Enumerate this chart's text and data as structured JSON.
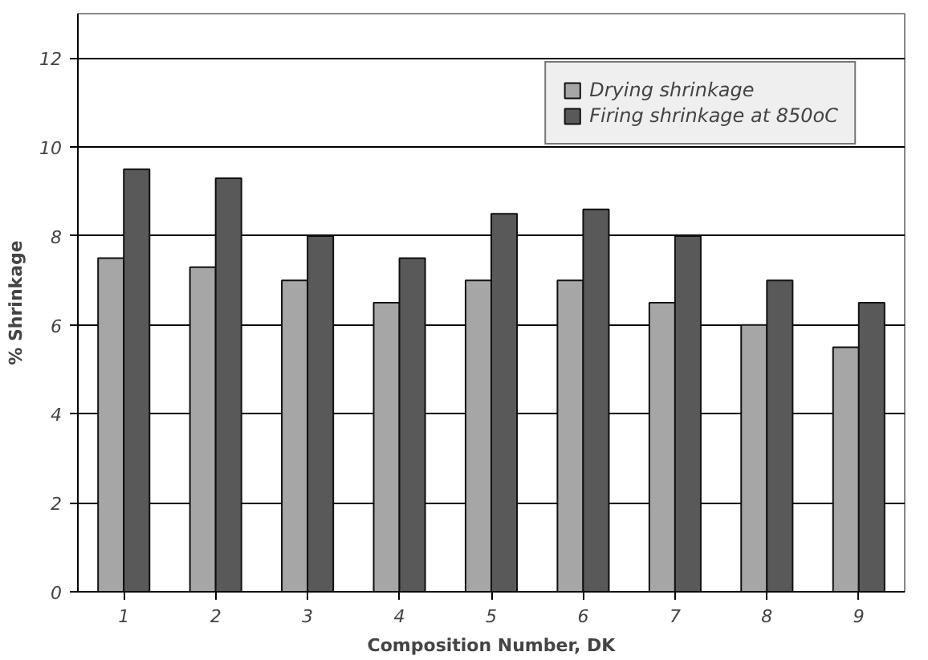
{
  "chart_data": {
    "type": "bar",
    "xlabel": "Composition Number, DK",
    "ylabel": "% Shrinkage",
    "categories": [
      "1",
      "2",
      "3",
      "4",
      "5",
      "6",
      "7",
      "8",
      "9"
    ],
    "series": [
      {
        "name": "Drying shrinkage",
        "color": "#a6a6a6",
        "values": [
          7.5,
          7.3,
          7.0,
          6.5,
          7.0,
          7.0,
          6.5,
          6.0,
          5.5
        ]
      },
      {
        "name": "Firing shrinkage at 850oC",
        "color": "#595959",
        "values": [
          9.5,
          9.3,
          8.0,
          7.5,
          8.5,
          8.6,
          8.0,
          7.0,
          6.5
        ]
      }
    ],
    "ylim": [
      0,
      13
    ],
    "yticks": [
      0,
      2,
      4,
      6,
      8,
      10,
      12
    ],
    "grid": "y",
    "legend": "top right"
  }
}
